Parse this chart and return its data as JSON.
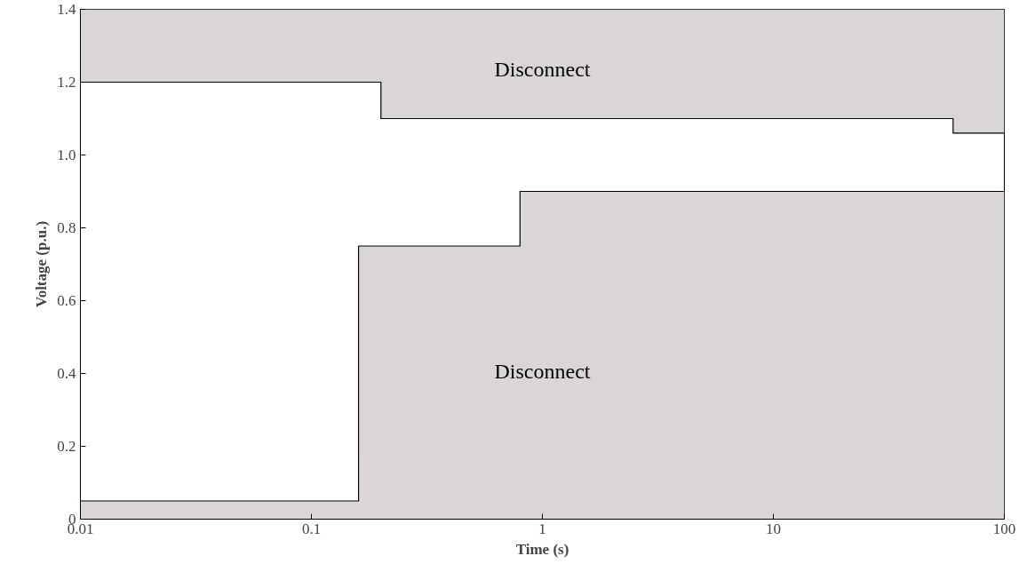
{
  "chart_data": {
    "type": "line",
    "xlabel": "Time (s)",
    "ylabel": "Voltage (p.u.)",
    "log": "x",
    "xlim": [
      0.01,
      100
    ],
    "xticks": [
      0.01,
      0.1,
      1,
      10,
      100
    ],
    "ylim": [
      0,
      1.4
    ],
    "yticks": [
      0,
      {
        "value": 0.2,
        "label": "0.2"
      },
      {
        "value": 0.4,
        "label": "0.4"
      },
      {
        "value": 0.6,
        "label": "0.6"
      },
      {
        "value": 0.8,
        "label": "0.8"
      },
      {
        "value": 1,
        "label": "1.0"
      },
      {
        "value": 1.2,
        "label": "1.2"
      },
      {
        "value": 1.4,
        "label": "1.4"
      }
    ],
    "series": [
      {
        "color": "#000000",
        "x": [
          0.01,
          0.2,
          0.2,
          60,
          60,
          100
        ],
        "values": [
          1.2,
          1.2,
          1.1,
          1.1,
          1.06,
          1.06
        ],
        "lower": [
          1.2,
          1.2,
          1.1,
          1.1,
          1.06,
          1.06
        ],
        "upper": [
          1.4,
          1.4,
          1.4,
          1.4,
          1.4,
          1.4
        ]
      },
      {
        "type": "area",
        "color": "#d9d5d9",
        "x": [
          0.01,
          0.16,
          0.16,
          0.8,
          0.8,
          100
        ],
        "values": [
          0.05,
          0.05,
          0.75,
          0.75,
          0.9,
          0.9
        ]
      }
    ],
    "annotations": [
      "Disconnect",
      "Disconnect"
    ],
    "grid": false
  }
}
